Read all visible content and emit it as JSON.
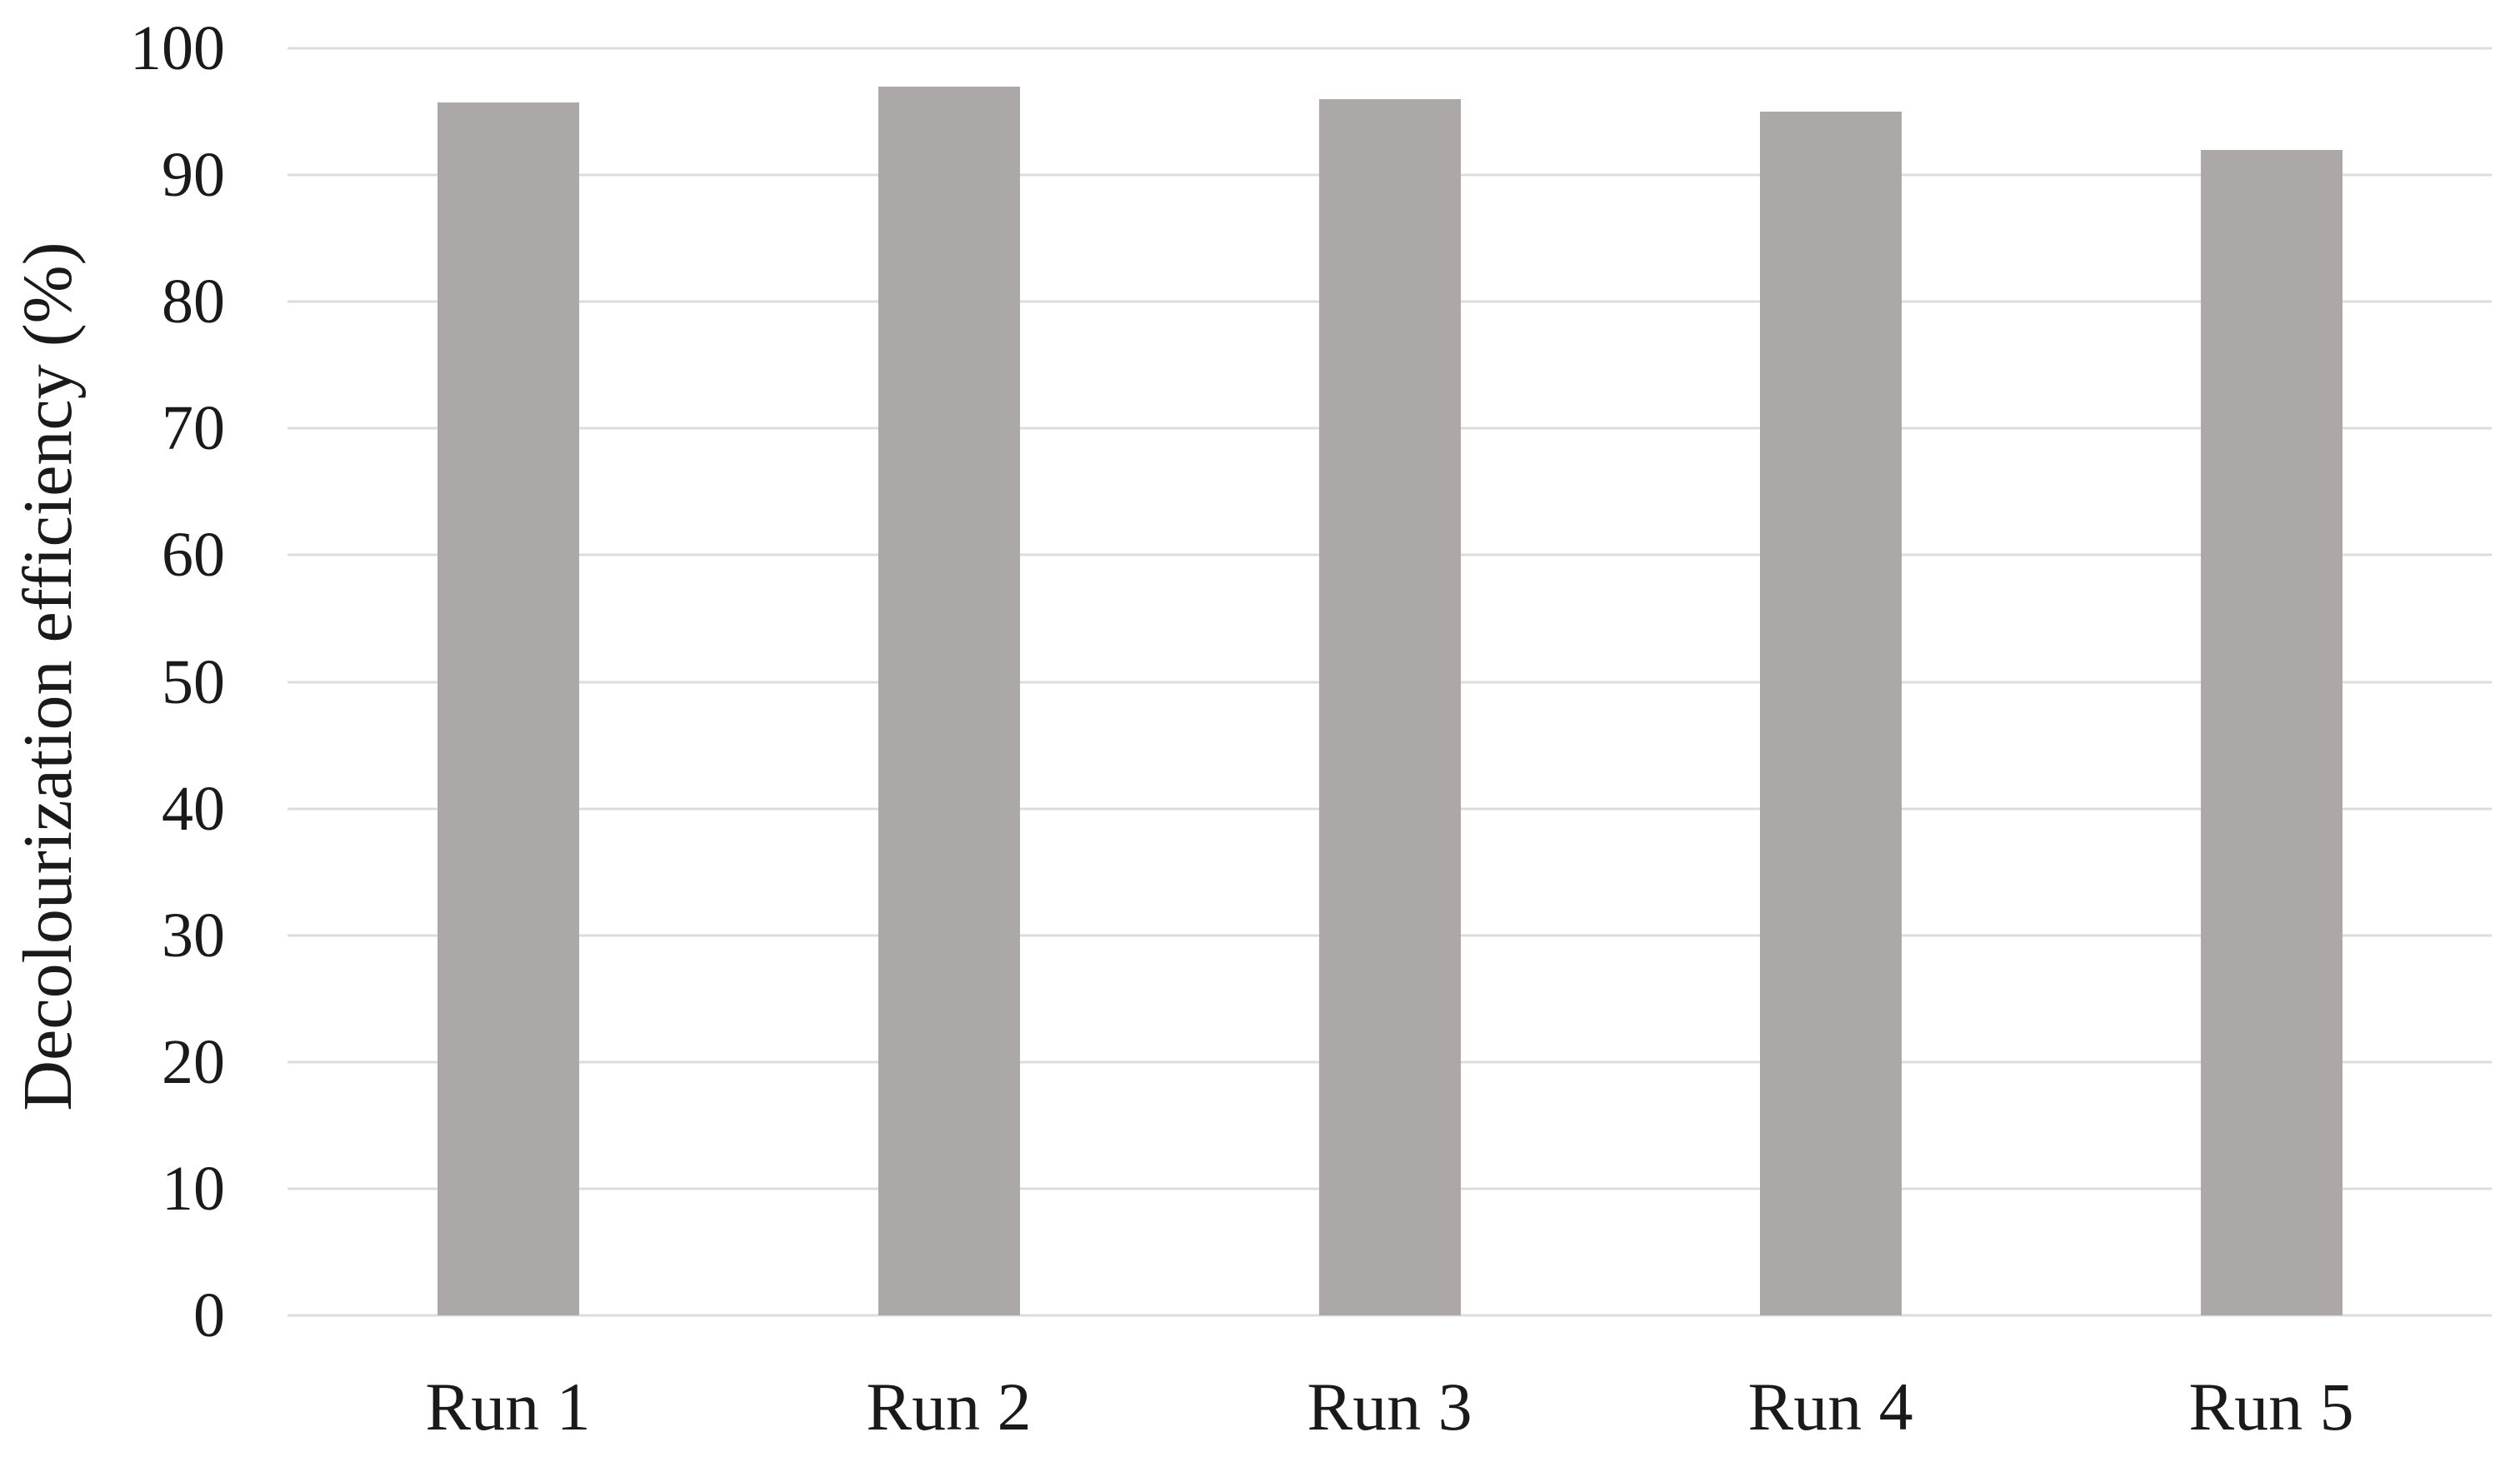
{
  "chart_data": {
    "type": "bar",
    "categories": [
      "Run 1",
      "Run 2",
      "Run 3",
      "Run 4",
      "Run 5"
    ],
    "values": [
      95.7,
      97,
      96,
      95,
      92
    ],
    "title": "",
    "xlabel": "",
    "ylabel": "Decolourization efficiency (%)",
    "ylim": [
      0,
      100
    ],
    "yticks": [
      0,
      10,
      20,
      30,
      40,
      50,
      60,
      70,
      80,
      90,
      100
    ],
    "grid": true,
    "legend": "none",
    "colors": {
      "bar_fill": "#aca8a8",
      "gridline": "#dcdcdc",
      "text": "#1a1a1a",
      "background": "#ffffff"
    }
  }
}
